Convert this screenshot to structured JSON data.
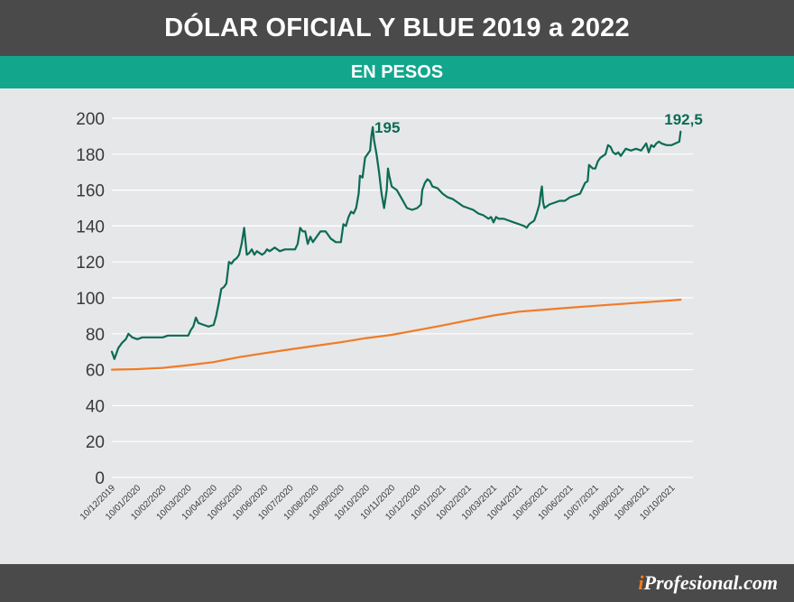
{
  "header": {
    "title": "DÓLAR OFICIAL Y BLUE 2019 a 2022",
    "subtitle": "EN PESOS"
  },
  "footer": {
    "brand_prefix": "i",
    "brand_rest": "Profesional.com"
  },
  "colors": {
    "blue_line": "#0b6b55",
    "oficial_line": "#f07b27",
    "grid": "#ffffff",
    "title_band": "#4a4a4a",
    "subtitle_band": "#12a68d",
    "plot_bg": "#e6e7e8"
  },
  "chart_data": {
    "type": "line",
    "ylim": [
      0,
      200
    ],
    "yticks": [
      0,
      20,
      40,
      60,
      80,
      100,
      120,
      140,
      160,
      180,
      200
    ],
    "x_tick_labels": [
      "10/12/2019",
      "10/01/2020",
      "10/02/2020",
      "10/03/2020",
      "10/04/2020",
      "10/05/2020",
      "10/06/2020",
      "10/07/2020",
      "10/08/2020",
      "10/09/2020",
      "10/10/2020",
      "10/11/2020",
      "10/12/2020",
      "10/01/2021",
      "10/02/2021",
      "10/03/2021",
      "10/04/2021",
      "10/05/2021",
      "10/06/2021",
      "10/07/2021",
      "10/08/2021",
      "10/09/2021",
      "10/10/2021"
    ],
    "grid": true,
    "series": [
      {
        "color": "#0b6b55",
        "points": [
          [
            0,
            70
          ],
          [
            0.1,
            66
          ],
          [
            0.25,
            72
          ],
          [
            0.4,
            75
          ],
          [
            0.55,
            77
          ],
          [
            0.65,
            80
          ],
          [
            0.8,
            78
          ],
          [
            1.0,
            77
          ],
          [
            1.2,
            78
          ],
          [
            1.5,
            78
          ],
          [
            1.8,
            78
          ],
          [
            2.0,
            78
          ],
          [
            2.2,
            79
          ],
          [
            2.5,
            79
          ],
          [
            2.8,
            79
          ],
          [
            3.0,
            79
          ],
          [
            3.1,
            82
          ],
          [
            3.2,
            84
          ],
          [
            3.3,
            89
          ],
          [
            3.4,
            86
          ],
          [
            3.6,
            85
          ],
          [
            3.8,
            84
          ],
          [
            4.0,
            85
          ],
          [
            4.1,
            90
          ],
          [
            4.2,
            97
          ],
          [
            4.3,
            105
          ],
          [
            4.4,
            106
          ],
          [
            4.5,
            108
          ],
          [
            4.6,
            120
          ],
          [
            4.7,
            119
          ],
          [
            4.8,
            121
          ],
          [
            4.9,
            122
          ],
          [
            5.0,
            124
          ],
          [
            5.1,
            130
          ],
          [
            5.2,
            139
          ],
          [
            5.3,
            124
          ],
          [
            5.4,
            125
          ],
          [
            5.5,
            127
          ],
          [
            5.6,
            124
          ],
          [
            5.7,
            126
          ],
          [
            5.8,
            125
          ],
          [
            5.9,
            124
          ],
          [
            6.0,
            125
          ],
          [
            6.1,
            127
          ],
          [
            6.2,
            126
          ],
          [
            6.4,
            128
          ],
          [
            6.6,
            126
          ],
          [
            6.8,
            127
          ],
          [
            7.0,
            127
          ],
          [
            7.2,
            127
          ],
          [
            7.3,
            130
          ],
          [
            7.4,
            139
          ],
          [
            7.5,
            137
          ],
          [
            7.6,
            137
          ],
          [
            7.7,
            130
          ],
          [
            7.8,
            134
          ],
          [
            7.9,
            131
          ],
          [
            8.0,
            133
          ],
          [
            8.2,
            137
          ],
          [
            8.4,
            137
          ],
          [
            8.6,
            133
          ],
          [
            8.8,
            131
          ],
          [
            9.0,
            131
          ],
          [
            9.1,
            141
          ],
          [
            9.2,
            140
          ],
          [
            9.3,
            145
          ],
          [
            9.4,
            148
          ],
          [
            9.5,
            147
          ],
          [
            9.6,
            150
          ],
          [
            9.7,
            158
          ],
          [
            9.75,
            168
          ],
          [
            9.85,
            167
          ],
          [
            9.95,
            178
          ],
          [
            10.05,
            180
          ],
          [
            10.15,
            182
          ],
          [
            10.2,
            190
          ],
          [
            10.25,
            195
          ],
          [
            10.3,
            188
          ],
          [
            10.4,
            180
          ],
          [
            10.5,
            170
          ],
          [
            10.6,
            158
          ],
          [
            10.7,
            150
          ],
          [
            10.8,
            160
          ],
          [
            10.85,
            172
          ],
          [
            10.9,
            168
          ],
          [
            11.0,
            162
          ],
          [
            11.2,
            160
          ],
          [
            11.4,
            155
          ],
          [
            11.6,
            150
          ],
          [
            11.8,
            149
          ],
          [
            12.0,
            150
          ],
          [
            12.15,
            152
          ],
          [
            12.2,
            160
          ],
          [
            12.3,
            164
          ],
          [
            12.4,
            166
          ],
          [
            12.5,
            165
          ],
          [
            12.6,
            162
          ],
          [
            12.8,
            161
          ],
          [
            13.0,
            158
          ],
          [
            13.2,
            156
          ],
          [
            13.4,
            155
          ],
          [
            13.6,
            153
          ],
          [
            13.8,
            151
          ],
          [
            14.0,
            150
          ],
          [
            14.2,
            149
          ],
          [
            14.4,
            147
          ],
          [
            14.6,
            146
          ],
          [
            14.7,
            145
          ],
          [
            14.8,
            144
          ],
          [
            14.9,
            145
          ],
          [
            15.0,
            142
          ],
          [
            15.1,
            145
          ],
          [
            15.2,
            144
          ],
          [
            15.4,
            144
          ],
          [
            15.6,
            143
          ],
          [
            15.8,
            142
          ],
          [
            16.0,
            141
          ],
          [
            16.2,
            140
          ],
          [
            16.3,
            139
          ],
          [
            16.4,
            141
          ],
          [
            16.5,
            142
          ],
          [
            16.6,
            143
          ],
          [
            16.7,
            147
          ],
          [
            16.8,
            152
          ],
          [
            16.85,
            158
          ],
          [
            16.9,
            162
          ],
          [
            16.95,
            153
          ],
          [
            17.0,
            150
          ],
          [
            17.2,
            152
          ],
          [
            17.4,
            153
          ],
          [
            17.6,
            154
          ],
          [
            17.8,
            154
          ],
          [
            18.0,
            156
          ],
          [
            18.2,
            157
          ],
          [
            18.4,
            158
          ],
          [
            18.6,
            164
          ],
          [
            18.7,
            165
          ],
          [
            18.75,
            174
          ],
          [
            18.9,
            172
          ],
          [
            19.0,
            172
          ],
          [
            19.1,
            176
          ],
          [
            19.2,
            178
          ],
          [
            19.4,
            180
          ],
          [
            19.5,
            185
          ],
          [
            19.6,
            184
          ],
          [
            19.7,
            181
          ],
          [
            19.8,
            180
          ],
          [
            19.9,
            181
          ],
          [
            20.0,
            179
          ],
          [
            20.1,
            181
          ],
          [
            20.2,
            183
          ],
          [
            20.4,
            182
          ],
          [
            20.6,
            183
          ],
          [
            20.8,
            182
          ],
          [
            21.0,
            186
          ],
          [
            21.1,
            181
          ],
          [
            21.2,
            185
          ],
          [
            21.3,
            184
          ],
          [
            21.4,
            186
          ],
          [
            21.5,
            187
          ],
          [
            21.6,
            186
          ],
          [
            21.8,
            185
          ],
          [
            22.0,
            185
          ],
          [
            22.15,
            186
          ],
          [
            22.3,
            187
          ],
          [
            22.35,
            192.5
          ]
        ],
        "label": "195",
        "label_point": [
          10.25,
          195
        ]
      },
      {
        "color": "#f07b27",
        "points": [
          [
            0,
            60
          ],
          [
            1,
            60.3
          ],
          [
            2,
            61
          ],
          [
            3,
            62.5
          ],
          [
            4,
            64.2
          ],
          [
            5,
            67
          ],
          [
            6,
            69.2
          ],
          [
            7,
            71.3
          ],
          [
            8,
            73.3
          ],
          [
            9,
            75.3
          ],
          [
            10,
            77.6
          ],
          [
            11,
            79.4
          ],
          [
            12,
            82
          ],
          [
            13,
            84.6
          ],
          [
            14,
            87.5
          ],
          [
            15,
            90.2
          ],
          [
            16,
            92.3
          ],
          [
            17,
            93.4
          ],
          [
            18,
            94.5
          ],
          [
            19,
            95.6
          ],
          [
            20,
            96.6
          ],
          [
            21,
            97.6
          ],
          [
            22,
            98.6
          ],
          [
            22.35,
            99
          ]
        ],
        "label": "",
        "label_point": null
      }
    ],
    "annotations": [
      {
        "text": "195",
        "x": 10.25,
        "y": 195
      },
      {
        "text": "192,5",
        "x": 22.35,
        "y": 192.5
      }
    ]
  }
}
